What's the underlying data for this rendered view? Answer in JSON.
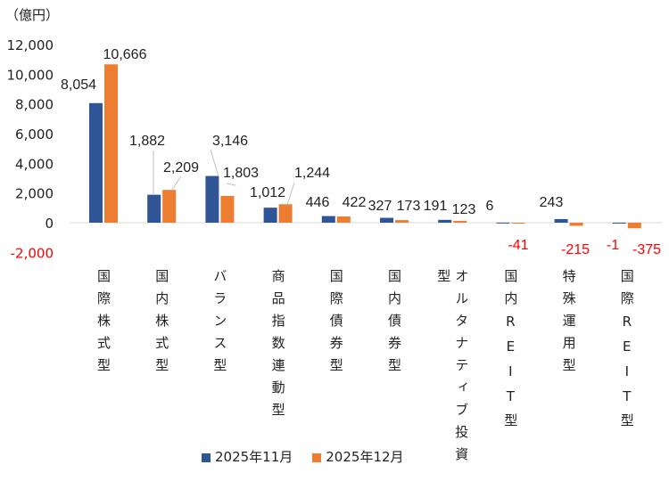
{
  "chart_data": {
    "type": "bar",
    "unit_label": "（億円）",
    "categories": [
      "国際株式型",
      "国内株式型",
      "バランス型",
      "商品指数連動型",
      "国際債券型",
      "国内債券型",
      "オルタナティブ投資型",
      "国内REIT型",
      "特殊運用型",
      "国際REIT型"
    ],
    "series": [
      {
        "name": "2025年11月",
        "color": "#2F5597",
        "values": [
          8054,
          1882,
          3146,
          1012,
          446,
          327,
          191,
          6,
          243,
          -1
        ],
        "labels": [
          "8,054",
          "1,882",
          "3,146",
          "1,012",
          "446",
          "327",
          "191",
          "6",
          "243",
          "-1"
        ]
      },
      {
        "name": "2025年12月",
        "color": "#ED7D31",
        "values": [
          10666,
          2209,
          1803,
          1244,
          422,
          173,
          123,
          -41,
          -215,
          -375
        ],
        "labels": [
          "10,666",
          "2,209",
          "1,803",
          "1,244",
          "422",
          "173",
          "123",
          "-41",
          "-215",
          "-375"
        ]
      }
    ],
    "ylim": [
      -2000,
      12000
    ],
    "yticks": [
      -2000,
      0,
      2000,
      4000,
      6000,
      8000,
      10000,
      12000
    ],
    "ytick_labels": [
      "-2,000",
      "0",
      "2,000",
      "4,000",
      "6,000",
      "8,000",
      "10,000",
      "12,000"
    ],
    "negative_label_color": "#FF0000",
    "grid": false,
    "legend_position": "bottom"
  }
}
